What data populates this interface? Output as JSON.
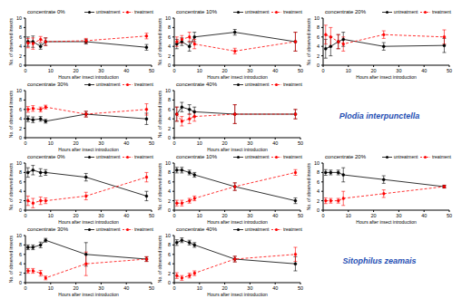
{
  "chart_data": [
    {
      "type": "line",
      "title": "concentrate 0%",
      "x_label": "Hours after insect introduction",
      "y_label": "No. of observed insects",
      "x": [
        1,
        3,
        6,
        8,
        24,
        48
      ],
      "xlim": [
        0,
        50
      ],
      "xticks": [
        0,
        10,
        20,
        30,
        40,
        50
      ],
      "ylim": [
        0,
        10
      ],
      "yticks": [
        0,
        2,
        4,
        6,
        8,
        10
      ],
      "grid": false,
      "legend": "upper right",
      "series": [
        {
          "name": "untreatment",
          "color": "#000000",
          "marker": "circle",
          "line_style": "solid",
          "values": [
            5,
            5,
            4,
            5,
            5,
            3.8
          ],
          "errors": [
            1,
            1.2,
            0.6,
            0.8,
            0.5,
            0.6
          ]
        },
        {
          "name": "treatment",
          "color": "#ff0000",
          "marker": "circle",
          "line_style": "dashed",
          "values": [
            4.7,
            4.6,
            5.5,
            5,
            5.2,
            6.2
          ],
          "errors": [
            1,
            1.2,
            0.6,
            0.8,
            0.5,
            0.6
          ]
        }
      ]
    },
    {
      "type": "line",
      "title": "concentrate 10%",
      "x_label": "Hours after insect introduction",
      "y_label": "No. of observed insects",
      "x": [
        1,
        3,
        6,
        8,
        24,
        48
      ],
      "xlim": [
        0,
        50
      ],
      "xticks": [
        0,
        10,
        20,
        30,
        40,
        50
      ],
      "ylim": [
        0,
        10
      ],
      "yticks": [
        0,
        2,
        4,
        6,
        8,
        10
      ],
      "grid": false,
      "legend": "upper right",
      "series": [
        {
          "name": "untreatment",
          "color": "#000000",
          "marker": "circle",
          "line_style": "solid",
          "values": [
            4.5,
            5,
            4,
            6,
            7,
            5
          ],
          "errors": [
            1,
            0.8,
            1,
            1,
            0.6,
            2
          ]
        },
        {
          "name": "treatment",
          "color": "#ff0000",
          "marker": "circle",
          "line_style": "dashed",
          "values": [
            5,
            5.5,
            6,
            4.5,
            3,
            5
          ],
          "errors": [
            1,
            0.8,
            1,
            1,
            0.6,
            2
          ]
        }
      ]
    },
    {
      "type": "line",
      "title": "concentrate 20%",
      "x_label": "Hours after insect introduction",
      "y_label": "No. of observed insects",
      "x": [
        1,
        3,
        6,
        8,
        24,
        48
      ],
      "xlim": [
        0,
        50
      ],
      "xticks": [
        0,
        10,
        20,
        30,
        40,
        50
      ],
      "ylim": [
        0,
        10
      ],
      "yticks": [
        0,
        2,
        4,
        6,
        8,
        10
      ],
      "grid": false,
      "legend": "upper right",
      "series": [
        {
          "name": "untreatment",
          "color": "#000000",
          "marker": "circle",
          "line_style": "solid",
          "values": [
            3.5,
            4,
            5,
            5.5,
            4,
            4.2
          ],
          "errors": [
            2,
            2,
            1.5,
            1.5,
            0.8,
            1.5
          ]
        },
        {
          "name": "treatment",
          "color": "#ff0000",
          "marker": "circle",
          "line_style": "dashed",
          "values": [
            6.5,
            6,
            5,
            4.5,
            6.5,
            6
          ],
          "errors": [
            2,
            2,
            1.5,
            1.5,
            0.8,
            1.5
          ]
        }
      ]
    },
    {
      "type": "line",
      "title": "concentrate 30%",
      "x_label": "Hours after insect introduction",
      "y_label": "No. of observed insects",
      "x": [
        1,
        3,
        6,
        8,
        24,
        48
      ],
      "xlim": [
        0,
        50
      ],
      "xticks": [
        0,
        10,
        20,
        30,
        40,
        50
      ],
      "ylim": [
        0,
        10
      ],
      "yticks": [
        0,
        2,
        4,
        6,
        8,
        10
      ],
      "grid": false,
      "legend": "upper right",
      "series": [
        {
          "name": "untreatment",
          "color": "#000000",
          "marker": "circle",
          "line_style": "solid",
          "values": [
            4,
            3.8,
            4,
            3.5,
            5,
            4
          ],
          "errors": [
            0.6,
            0.6,
            0.5,
            0.4,
            0.6,
            1.2
          ]
        },
        {
          "name": "treatment",
          "color": "#ff0000",
          "marker": "circle",
          "line_style": "dashed",
          "values": [
            6,
            6.2,
            6,
            6.5,
            5,
            6
          ],
          "errors": [
            0.6,
            0.6,
            0.5,
            0.4,
            0.6,
            1.2
          ]
        }
      ]
    },
    {
      "type": "line",
      "title": "concentrate 40%",
      "x_label": "Hours after insect introduction",
      "y_label": "No. of observed insects",
      "x": [
        1,
        3,
        6,
        8,
        24,
        48
      ],
      "xlim": [
        0,
        50
      ],
      "xticks": [
        0,
        10,
        20,
        30,
        40,
        50
      ],
      "ylim": [
        0,
        10
      ],
      "yticks": [
        0,
        2,
        4,
        6,
        8,
        10
      ],
      "grid": false,
      "legend": "upper right",
      "annotation": "Plodia interpunctella",
      "series": [
        {
          "name": "untreatment",
          "color": "#000000",
          "marker": "circle",
          "line_style": "solid",
          "values": [
            5,
            6.5,
            6,
            5.5,
            5,
            5
          ],
          "errors": [
            1.5,
            1,
            1,
            1,
            2,
            1
          ]
        },
        {
          "name": "treatment",
          "color": "#ff0000",
          "marker": "circle",
          "line_style": "dashed",
          "values": [
            5,
            3.5,
            4,
            4.5,
            5,
            5
          ],
          "errors": [
            1.5,
            1,
            1,
            1,
            2,
            1
          ]
        }
      ]
    },
    {
      "type": "line",
      "title": "concentrate 0%",
      "x_label": "Hours after insect introduction",
      "y_label": "No. of observed insects",
      "x": [
        1,
        3,
        6,
        8,
        24,
        48
      ],
      "xlim": [
        0,
        50
      ],
      "xticks": [
        0,
        10,
        20,
        30,
        40,
        50
      ],
      "ylim": [
        0,
        10
      ],
      "yticks": [
        0,
        2,
        4,
        6,
        8,
        10
      ],
      "grid": false,
      "legend": "upper right",
      "series": [
        {
          "name": "untreatment",
          "color": "#000000",
          "marker": "circle",
          "line_style": "solid",
          "values": [
            8,
            8.5,
            8,
            8,
            7,
            3
          ],
          "errors": [
            1,
            1,
            0.8,
            0.6,
            0.8,
            1
          ]
        },
        {
          "name": "treatment",
          "color": "#ff0000",
          "marker": "circle",
          "line_style": "dashed",
          "values": [
            2,
            1.5,
            2,
            2,
            3,
            7
          ],
          "errors": [
            1,
            1,
            0.8,
            0.6,
            0.8,
            1
          ]
        }
      ]
    },
    {
      "type": "line",
      "title": "concentrate 10%",
      "x_label": "Hours after insect introduction",
      "y_label": "No. of observed insects",
      "x": [
        1,
        3,
        6,
        8,
        24,
        48
      ],
      "xlim": [
        0,
        50
      ],
      "xticks": [
        0,
        10,
        20,
        30,
        40,
        50
      ],
      "ylim": [
        0,
        10
      ],
      "yticks": [
        0,
        2,
        4,
        6,
        8,
        10
      ],
      "grid": false,
      "legend": "upper right",
      "series": [
        {
          "name": "untreatment",
          "color": "#000000",
          "marker": "circle",
          "line_style": "solid",
          "values": [
            8.5,
            8.5,
            8,
            7.5,
            5,
            2
          ],
          "errors": [
            0.6,
            0.6,
            0.5,
            0.5,
            0.8,
            0.6
          ]
        },
        {
          "name": "treatment",
          "color": "#ff0000",
          "marker": "circle",
          "line_style": "dashed",
          "values": [
            1.5,
            1.5,
            2,
            2.5,
            5,
            8
          ],
          "errors": [
            0.6,
            0.6,
            0.5,
            0.5,
            0.8,
            0.6
          ]
        }
      ]
    },
    {
      "type": "line",
      "title": "concentrate 20%",
      "x_label": "Hours after insect introduction",
      "y_label": "No. of observed insects",
      "x": [
        1,
        3,
        6,
        8,
        24,
        48
      ],
      "xlim": [
        0,
        50
      ],
      "xticks": [
        0,
        10,
        20,
        30,
        40,
        50
      ],
      "ylim": [
        0,
        10
      ],
      "yticks": [
        0,
        2,
        4,
        6,
        8,
        10
      ],
      "grid": false,
      "legend": "upper right",
      "series": [
        {
          "name": "untreatment",
          "color": "#000000",
          "marker": "circle",
          "line_style": "solid",
          "values": [
            8,
            8,
            8,
            7.5,
            6.5,
            5
          ],
          "errors": [
            0.6,
            0.5,
            0.5,
            1.5,
            0.8,
            0.3
          ]
        },
        {
          "name": "treatment",
          "color": "#ff0000",
          "marker": "circle",
          "line_style": "dashed",
          "values": [
            2,
            2,
            2,
            2.5,
            3.5,
            5
          ],
          "errors": [
            0.6,
            0.5,
            0.5,
            1.5,
            0.8,
            0.3
          ]
        }
      ]
    },
    {
      "type": "line",
      "title": "concentrate 30%",
      "x_label": "Hours after insect introduction",
      "y_label": "No. of observed insects",
      "x": [
        1,
        3,
        6,
        8,
        24,
        48
      ],
      "xlim": [
        0,
        50
      ],
      "xticks": [
        0,
        10,
        20,
        30,
        40,
        50
      ],
      "ylim": [
        0,
        10
      ],
      "yticks": [
        0,
        2,
        4,
        6,
        8,
        10
      ],
      "grid": false,
      "legend": "upper right",
      "series": [
        {
          "name": "untreatment",
          "color": "#000000",
          "marker": "circle",
          "line_style": "solid",
          "values": [
            7.5,
            7.5,
            8,
            9,
            6,
            5
          ],
          "errors": [
            0.5,
            0.5,
            0.6,
            0.4,
            2.5,
            0.5
          ]
        },
        {
          "name": "treatment",
          "color": "#ff0000",
          "marker": "circle",
          "line_style": "dashed",
          "values": [
            2.5,
            2.5,
            2,
            1,
            4,
            5
          ],
          "errors": [
            0.5,
            0.5,
            0.6,
            0.4,
            2.5,
            0.5
          ]
        }
      ]
    },
    {
      "type": "line",
      "title": "concentrate 40%",
      "x_label": "Hours after insect introduction",
      "y_label": "No. of observed insects",
      "x": [
        1,
        3,
        6,
        8,
        24,
        48
      ],
      "xlim": [
        0,
        50
      ],
      "xticks": [
        0,
        10,
        20,
        30,
        40,
        50
      ],
      "ylim": [
        0,
        10
      ],
      "yticks": [
        0,
        2,
        4,
        6,
        8,
        10
      ],
      "grid": false,
      "legend": "upper right",
      "annotation": "Sitophilus zeamais",
      "series": [
        {
          "name": "untreatment",
          "color": "#000000",
          "marker": "circle",
          "line_style": "solid",
          "values": [
            8.5,
            9,
            8.5,
            8,
            5,
            4
          ],
          "errors": [
            0.6,
            0.5,
            0.5,
            0.5,
            0.6,
            1.5
          ]
        },
        {
          "name": "treatment",
          "color": "#ff0000",
          "marker": "circle",
          "line_style": "dashed",
          "values": [
            1.5,
            1,
            1.5,
            2,
            5,
            6
          ],
          "errors": [
            0.6,
            0.5,
            0.5,
            0.5,
            0.6,
            1.5
          ]
        }
      ]
    }
  ]
}
